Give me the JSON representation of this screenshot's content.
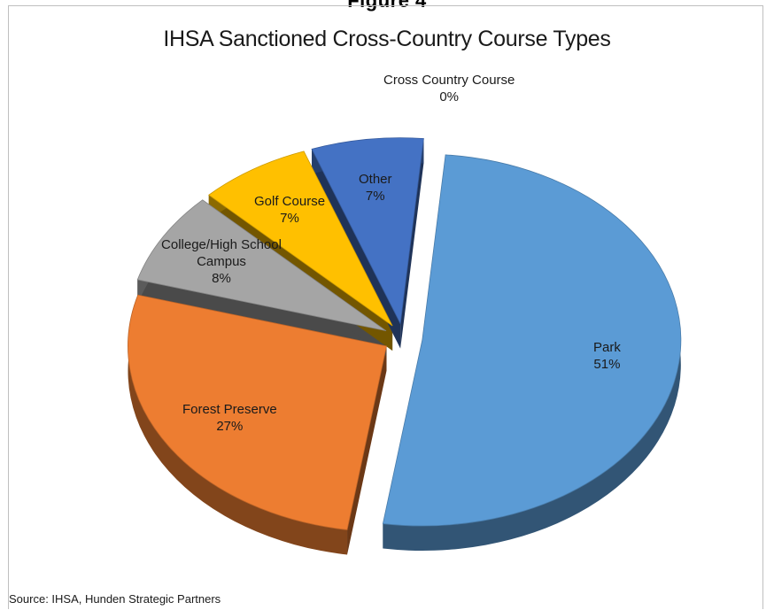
{
  "figure_heading": "Figure 4",
  "chart_data": {
    "type": "pie",
    "title": "IHSA Sanctioned Cross-Country Course Types",
    "slices": [
      {
        "label": "Park",
        "percent_label": "51%",
        "value": 51,
        "color": "#5b9bd5"
      },
      {
        "label": "Forest Preserve",
        "percent_label": "27%",
        "value": 27,
        "color": "#ed7d31"
      },
      {
        "label": "College/High School Campus",
        "percent_label": "8%",
        "value": 8,
        "color": "#a5a5a5"
      },
      {
        "label": "Golf Course",
        "percent_label": "7%",
        "value": 7,
        "color": "#ffc000"
      },
      {
        "label": "Other",
        "percent_label": "7%",
        "value": 7,
        "color": "#4472c4"
      },
      {
        "label": "Cross Country Course",
        "percent_label": "0%",
        "value": 0,
        "color": "#70ad47"
      }
    ],
    "style": "3d-exploded",
    "legend": "none"
  },
  "source": "Source: IHSA, Hunden Strategic Partners"
}
